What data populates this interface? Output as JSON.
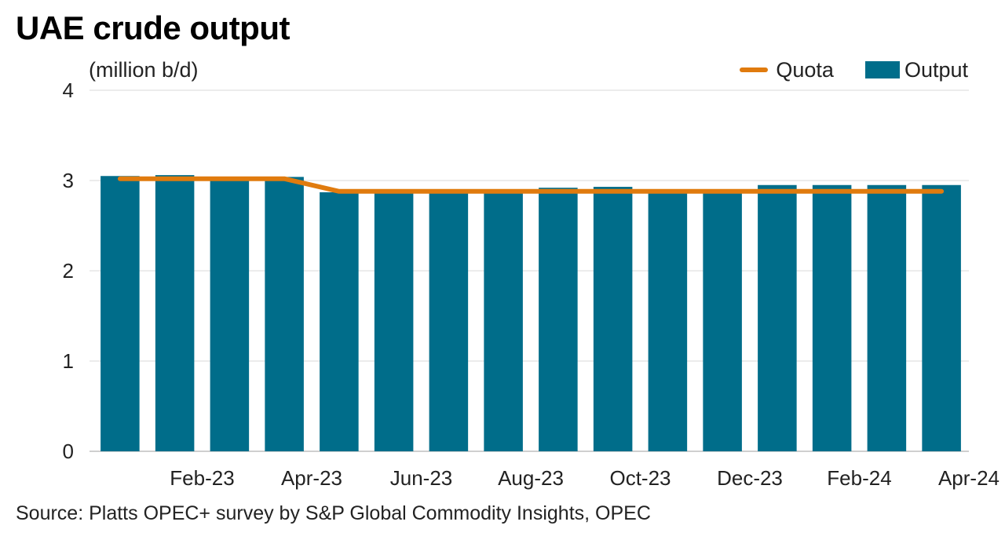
{
  "chart_data": {
    "type": "bar",
    "title": "UAE crude output",
    "ylabel": "(million b/d)",
    "xlabel": "",
    "ylim": [
      0,
      4
    ],
    "yticks": [
      "0",
      "1",
      "2",
      "3",
      "4"
    ],
    "grid": true,
    "legend_position": "top-right",
    "categories": [
      "Jan-23",
      "Feb-23",
      "Mar-23",
      "Apr-23",
      "May-23",
      "Jun-23",
      "Jul-23",
      "Aug-23",
      "Sep-23",
      "Oct-23",
      "Nov-23",
      "Dec-23",
      "Jan-24",
      "Feb-24",
      "Mar-24",
      "Apr-24"
    ],
    "xtick_labels": [
      "Feb-23",
      "Apr-23",
      "Jun-23",
      "Aug-23",
      "Oct-23",
      "Dec-23",
      "Feb-24",
      "Apr-24"
    ],
    "series": [
      {
        "name": "Output",
        "kind": "bar",
        "color": "#006D8A",
        "values": [
          3.05,
          3.06,
          3.03,
          3.04,
          2.87,
          2.87,
          2.87,
          2.88,
          2.92,
          2.93,
          2.9,
          2.87,
          2.95,
          2.95,
          2.95,
          2.95
        ]
      },
      {
        "name": "Quota",
        "kind": "line",
        "color": "#E07B0E",
        "values": [
          3.02,
          3.02,
          3.02,
          3.02,
          2.88,
          2.88,
          2.88,
          2.88,
          2.88,
          2.88,
          2.88,
          2.88,
          2.88,
          2.88,
          2.88,
          2.88
        ]
      }
    ]
  },
  "source": "Source: Platts OPEC+ survey by S&P Global Commodity Insights, OPEC",
  "colors": {
    "grid": "#d9d9d9",
    "axis": "#bfbfbf"
  }
}
